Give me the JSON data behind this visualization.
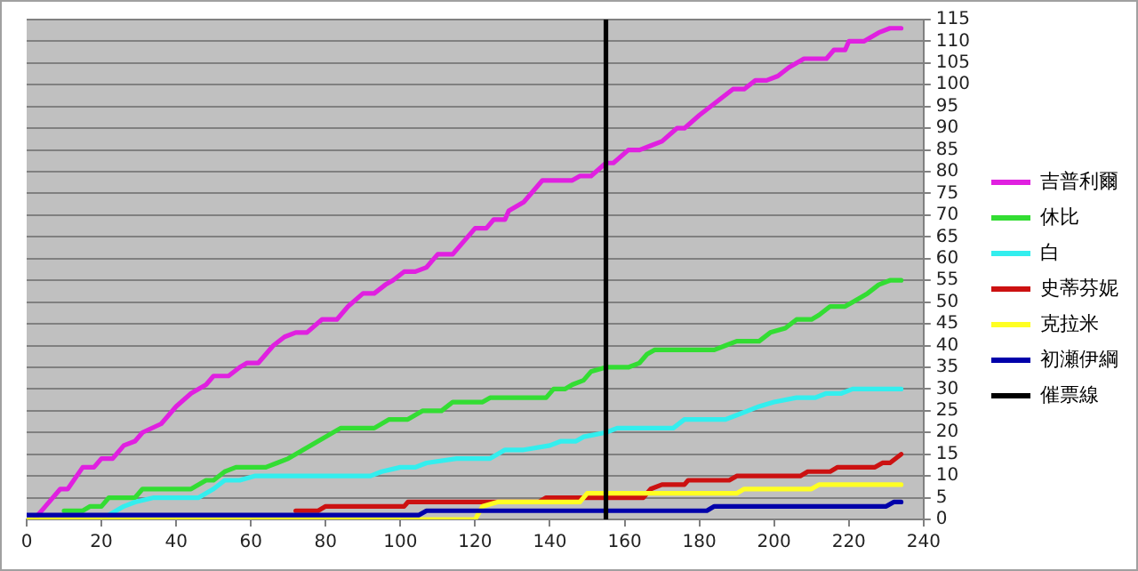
{
  "chart_data": {
    "type": "line",
    "xlim": [
      0,
      240
    ],
    "xticks": [
      0,
      20,
      40,
      60,
      80,
      100,
      120,
      140,
      160,
      180,
      200,
      220,
      240
    ],
    "ylim": [
      0,
      115
    ],
    "yticks": [
      0,
      5,
      10,
      15,
      20,
      25,
      30,
      35,
      40,
      45,
      50,
      55,
      60,
      65,
      70,
      75,
      80,
      85,
      90,
      95,
      100,
      105,
      110,
      115
    ],
    "grid": "y",
    "legend": "right",
    "series": [
      {
        "name": "吉普利爾",
        "color": "#e020e0",
        "x": [
          2,
          5,
          9,
          11,
          15,
          18,
          20,
          23,
          26,
          29,
          31,
          36,
          40,
          44,
          48,
          50,
          54,
          57,
          59,
          62,
          66,
          69,
          72,
          75,
          79,
          83,
          86,
          90,
          93,
          96,
          98,
          101,
          104,
          107,
          110,
          114,
          120,
          123,
          125,
          128,
          129,
          133,
          135,
          138,
          146,
          148,
          151,
          155,
          157,
          161,
          164,
          167,
          170,
          174,
          176,
          180,
          183,
          186,
          189,
          192,
          195,
          198,
          201,
          204,
          208,
          214,
          216,
          219,
          220,
          224,
          228,
          231,
          234
        ],
        "values": [
          0,
          3,
          7,
          7,
          12,
          12,
          14,
          14,
          17,
          18,
          20,
          22,
          26,
          29,
          31,
          33,
          33,
          35,
          36,
          36,
          40,
          42,
          43,
          43,
          46,
          46,
          49,
          52,
          52,
          54,
          55,
          57,
          57,
          58,
          61,
          61,
          67,
          67,
          69,
          69,
          71,
          73,
          75,
          78,
          78,
          79,
          79,
          82,
          82,
          85,
          85,
          86,
          87,
          90,
          90,
          93,
          95,
          97,
          99,
          99,
          101,
          101,
          102,
          104,
          106,
          106,
          108,
          108,
          110,
          110,
          112,
          113,
          113
        ]
      },
      {
        "name": "休比",
        "color": "#33dd33",
        "x": [
          10,
          15,
          17,
          20,
          22,
          29,
          31,
          44,
          48,
          50,
          53,
          56,
          64,
          67,
          70,
          74,
          78,
          84,
          93,
          97,
          102,
          106,
          111,
          114,
          122,
          124,
          139,
          141,
          144,
          146,
          149,
          151,
          155,
          161,
          164,
          166,
          168,
          184,
          187,
          190,
          196,
          199,
          203,
          206,
          210,
          212,
          215,
          219,
          221,
          225,
          228,
          231,
          234
        ],
        "values": [
          2,
          2,
          3,
          3,
          5,
          5,
          7,
          7,
          9,
          9,
          11,
          12,
          12,
          13,
          14,
          16,
          18,
          21,
          21,
          23,
          23,
          25,
          25,
          27,
          27,
          28,
          28,
          30,
          30,
          31,
          32,
          34,
          35,
          35,
          36,
          38,
          39,
          39,
          40,
          41,
          41,
          43,
          44,
          46,
          46,
          47,
          49,
          49,
          50,
          52,
          54,
          55,
          55
        ]
      },
      {
        "name": "白",
        "color": "#33eeee",
        "x": [
          22,
          26,
          29,
          34,
          46,
          50,
          53,
          57,
          61,
          92,
          95,
          100,
          104,
          107,
          115,
          124,
          128,
          133,
          140,
          143,
          147,
          149,
          155,
          158,
          173,
          176,
          187,
          190,
          193,
          196,
          200,
          206,
          211,
          214,
          218,
          221,
          234
        ],
        "values": [
          1,
          3,
          4,
          5,
          5,
          7,
          9,
          9,
          10,
          10,
          11,
          12,
          12,
          13,
          14,
          14,
          16,
          16,
          17,
          18,
          18,
          19,
          20,
          21,
          21,
          23,
          23,
          24,
          25,
          26,
          27,
          28,
          28,
          29,
          29,
          30,
          30
        ]
      },
      {
        "name": "史蒂芬妮",
        "color": "#cc1111",
        "x": [
          72,
          78,
          80,
          101,
          102,
          137,
          139,
          165,
          167,
          170,
          176,
          177,
          188,
          190,
          207,
          209,
          215,
          217,
          227,
          229,
          231,
          234
        ],
        "values": [
          2,
          2,
          3,
          3,
          4,
          4,
          5,
          5,
          7,
          8,
          8,
          9,
          9,
          10,
          10,
          11,
          11,
          12,
          12,
          13,
          13,
          15
        ]
      },
      {
        "name": "克拉米",
        "color": "#ffff22",
        "x": [
          0,
          120,
          122,
          126,
          148,
          150,
          190,
          192,
          210,
          212,
          234
        ],
        "values": [
          0,
          0,
          3,
          4,
          4,
          6,
          6,
          7,
          7,
          8,
          8
        ]
      },
      {
        "name": "初瀬伊綱",
        "color": "#0000aa",
        "x": [
          0,
          105,
          107,
          182,
          184,
          230,
          232,
          234
        ],
        "values": [
          1,
          1,
          2,
          2,
          3,
          3,
          4,
          4
        ]
      },
      {
        "name": "催票線",
        "color": "#000000",
        "x": [
          155,
          155
        ],
        "values": [
          0,
          115
        ]
      }
    ]
  }
}
